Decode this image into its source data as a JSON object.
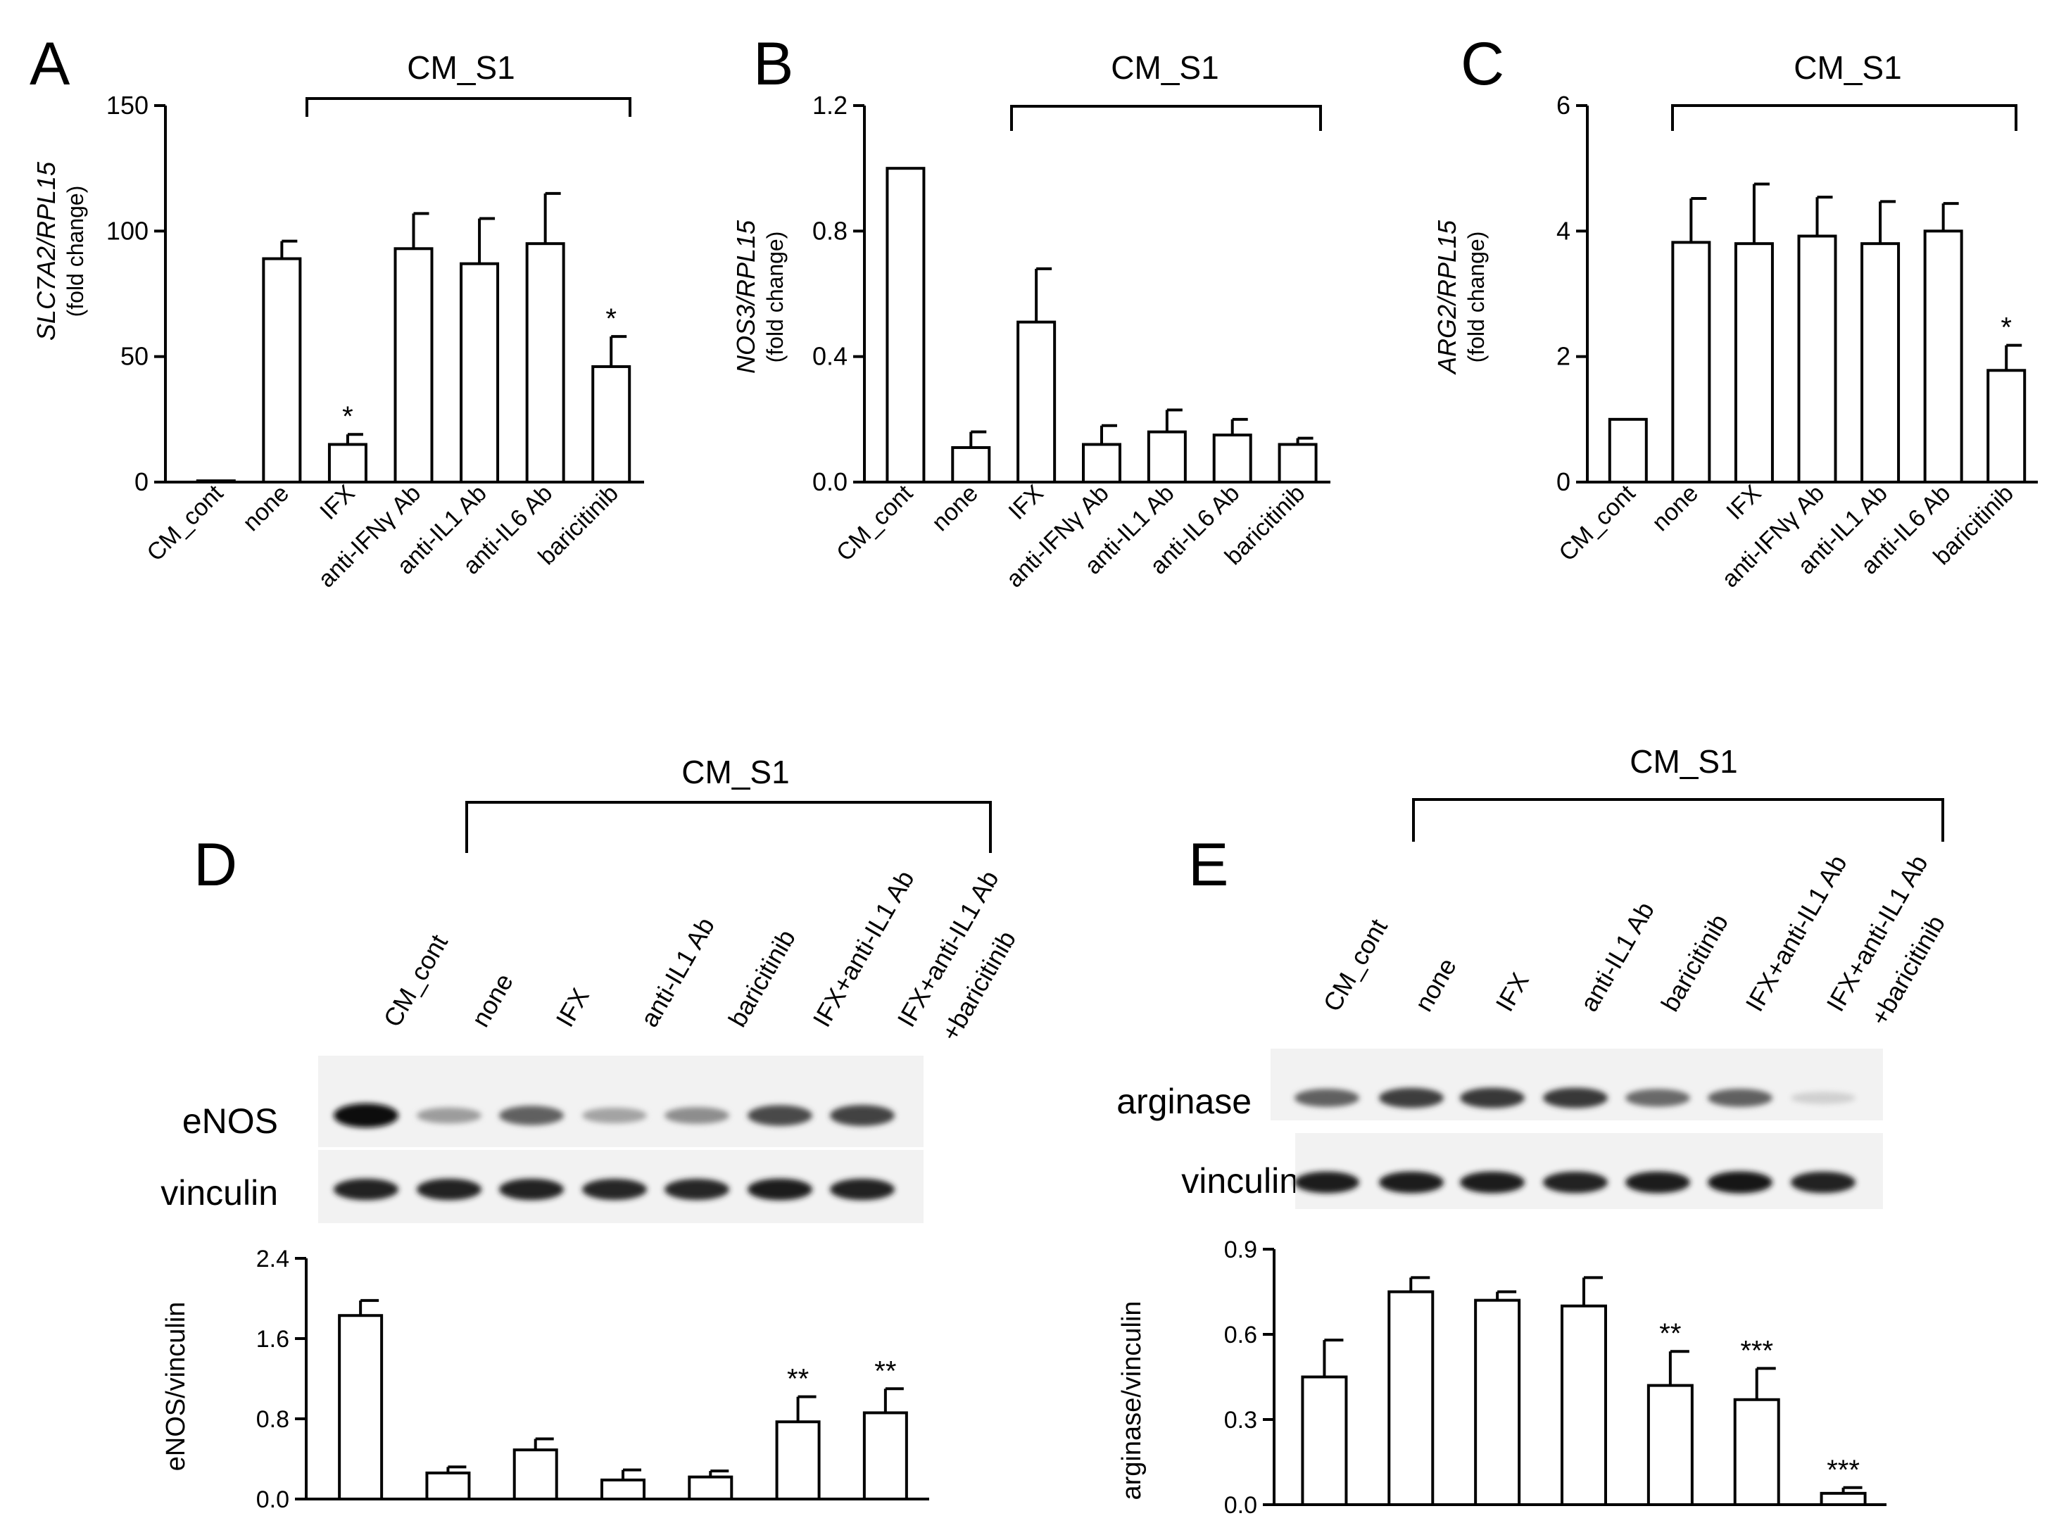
{
  "group_label": "CM_S1",
  "chart_data": [
    {
      "panel": "A",
      "type": "bar",
      "gene": "SLC7A2/RPL15",
      "ylabel_sub": "(fold change)",
      "ylim": [
        0,
        150
      ],
      "yticks": [
        "0",
        "50",
        "100",
        "150"
      ],
      "categories": [
        "CM_cont",
        "none",
        "IFX",
        "anti-IFNγ Ab",
        "anti-IL1 Ab",
        "anti-IL6 Ab",
        "baricitinib"
      ],
      "values": [
        0.5,
        89,
        15,
        93,
        87,
        95,
        46
      ],
      "errors": [
        0,
        7,
        4,
        14,
        18,
        20,
        12
      ],
      "significance": [
        "",
        "",
        "*",
        "",
        "",
        "",
        "*"
      ]
    },
    {
      "panel": "B",
      "type": "bar",
      "gene": "NOS3/RPL15",
      "ylabel_sub": "(fold change)",
      "ylim": [
        0,
        1.2
      ],
      "yticks": [
        "0.0",
        "0.4",
        "0.8",
        "1.2"
      ],
      "categories": [
        "CM_cont",
        "none",
        "IFX",
        "anti-IFNγ Ab",
        "anti-IL1 Ab",
        "anti-IL6 Ab",
        "baricitinib"
      ],
      "values": [
        1.0,
        0.11,
        0.51,
        0.12,
        0.16,
        0.15,
        0.12
      ],
      "errors": [
        0,
        0.05,
        0.17,
        0.06,
        0.07,
        0.05,
        0.02
      ],
      "significance": [
        "",
        "",
        "",
        "",
        "",
        "",
        ""
      ]
    },
    {
      "panel": "C",
      "type": "bar",
      "gene": "ARG2/RPL15",
      "ylabel_sub": "(fold change)",
      "ylim": [
        0,
        6
      ],
      "yticks": [
        "0",
        "2",
        "4",
        "6"
      ],
      "categories": [
        "CM_cont",
        "none",
        "IFX",
        "anti-IFNγ Ab",
        "anti-IL1 Ab",
        "anti-IL6 Ab",
        "baricitinib"
      ],
      "values": [
        1.0,
        3.82,
        3.8,
        3.92,
        3.8,
        4.0,
        1.78
      ],
      "errors": [
        0,
        0.7,
        0.95,
        0.62,
        0.67,
        0.44,
        0.4
      ],
      "significance": [
        "",
        "",
        "",
        "",
        "",
        "",
        "*"
      ]
    },
    {
      "panel": "D",
      "type": "bar",
      "ylabel": "eNOS/vinculin",
      "ylim": [
        0,
        2.4
      ],
      "yticks": [
        "0.0",
        "0.8",
        "1.6",
        "2.4"
      ],
      "categories": [
        "CM_cont",
        "none",
        "IFX",
        "anti-IL1 Ab",
        "baricitinib",
        "IFX+anti-IL1 Ab",
        "IFX+anti-IL1 Ab +baricitinib"
      ],
      "values": [
        1.83,
        0.26,
        0.49,
        0.19,
        0.22,
        0.77,
        0.86
      ],
      "errors": [
        0.15,
        0.06,
        0.11,
        0.1,
        0.06,
        0.25,
        0.24
      ],
      "significance": [
        "",
        "",
        "",
        "",
        "",
        "**",
        "**"
      ],
      "blot_labels": [
        "eNOS",
        "vinculin"
      ],
      "lane_labels": [
        [
          "CM_cont"
        ],
        [
          "none"
        ],
        [
          "IFX"
        ],
        [
          "anti-IL1 Ab"
        ],
        [
          "baricitinib"
        ],
        [
          "IFX+anti-IL1 Ab"
        ],
        [
          "IFX+anti-IL1 Ab",
          "+baricitinib"
        ]
      ]
    },
    {
      "panel": "E",
      "type": "bar",
      "ylabel": "arginase/vinculin",
      "ylim": [
        0,
        0.9
      ],
      "yticks": [
        "0.0",
        "0.3",
        "0.6",
        "0.9"
      ],
      "categories": [
        "CM_cont",
        "none",
        "IFX",
        "anti-IL1 Ab",
        "baricitinib",
        "IFX+anti-IL1 Ab",
        "IFX+anti-IL1 Ab +baricitinib"
      ],
      "values": [
        0.45,
        0.75,
        0.72,
        0.7,
        0.42,
        0.37,
        0.04
      ],
      "errors": [
        0.13,
        0.05,
        0.03,
        0.1,
        0.12,
        0.11,
        0.02
      ],
      "significance": [
        "",
        "",
        "",
        "",
        "**",
        "***",
        "***"
      ],
      "blot_labels": [
        "arginase",
        "vinculin"
      ],
      "lane_labels": [
        [
          "CM_cont"
        ],
        [
          "none"
        ],
        [
          "IFX"
        ],
        [
          "anti-IL1 Ab"
        ],
        [
          "baricitinib"
        ],
        [
          "IFX+anti-IL1 Ab"
        ],
        [
          "IFX+anti-IL1 Ab",
          "+baricitinib"
        ]
      ]
    }
  ],
  "blots": {
    "D": {
      "enos_intensity": [
        1.0,
        0.35,
        0.62,
        0.32,
        0.42,
        0.72,
        0.75
      ],
      "vinculin_intensity": [
        0.9,
        0.9,
        0.9,
        0.88,
        0.88,
        0.92,
        0.9
      ]
    },
    "E": {
      "arginase_intensity": [
        0.62,
        0.78,
        0.8,
        0.8,
        0.58,
        0.62,
        0.12
      ],
      "vinculin_intensity": [
        0.92,
        0.92,
        0.92,
        0.9,
        0.92,
        0.95,
        0.9
      ]
    }
  }
}
